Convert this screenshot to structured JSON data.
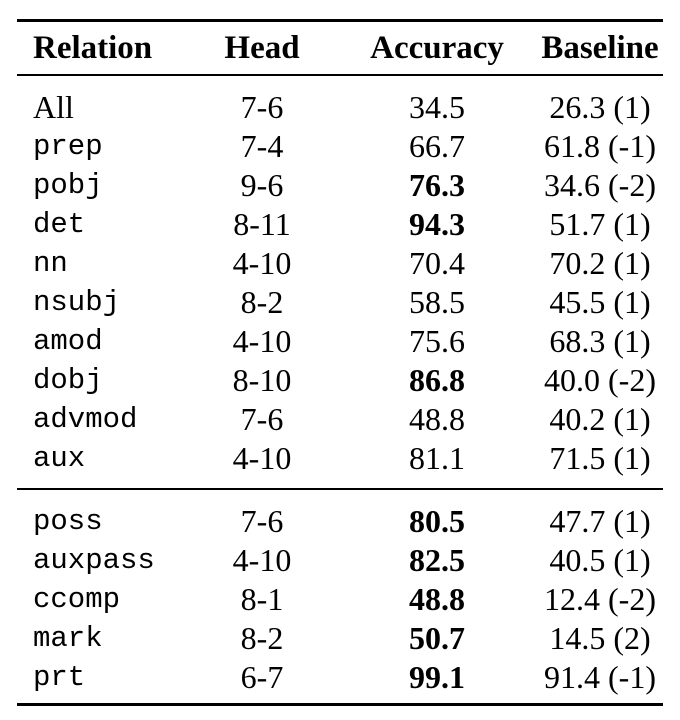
{
  "table": {
    "header": {
      "relation": "Relation",
      "head": "Head",
      "accuracy": "Accuracy",
      "baseline": "Baseline"
    },
    "sections": [
      {
        "rows": [
          {
            "relation": "All",
            "head": "7-6",
            "accuracy": "34.5",
            "baseline": "26.3 (1)",
            "accuracy_bold": false,
            "relation_mono": false
          },
          {
            "relation": "prep",
            "head": "7-4",
            "accuracy": "66.7",
            "baseline": "61.8 (-1)",
            "accuracy_bold": false,
            "relation_mono": true
          },
          {
            "relation": "pobj",
            "head": "9-6",
            "accuracy": "76.3",
            "baseline": "34.6 (-2)",
            "accuracy_bold": true,
            "relation_mono": true
          },
          {
            "relation": "det",
            "head": "8-11",
            "accuracy": "94.3",
            "baseline": "51.7 (1)",
            "accuracy_bold": true,
            "relation_mono": true
          },
          {
            "relation": "nn",
            "head": "4-10",
            "accuracy": "70.4",
            "baseline": "70.2 (1)",
            "accuracy_bold": false,
            "relation_mono": true
          },
          {
            "relation": "nsubj",
            "head": "8-2",
            "accuracy": "58.5",
            "baseline": "45.5 (1)",
            "accuracy_bold": false,
            "relation_mono": true
          },
          {
            "relation": "amod",
            "head": "4-10",
            "accuracy": "75.6",
            "baseline": "68.3 (1)",
            "accuracy_bold": false,
            "relation_mono": true
          },
          {
            "relation": "dobj",
            "head": "8-10",
            "accuracy": "86.8",
            "baseline": "40.0 (-2)",
            "accuracy_bold": true,
            "relation_mono": true
          },
          {
            "relation": "advmod",
            "head": "7-6",
            "accuracy": "48.8",
            "baseline": "40.2 (1)",
            "accuracy_bold": false,
            "relation_mono": true
          },
          {
            "relation": "aux",
            "head": "4-10",
            "accuracy": "81.1",
            "baseline": "71.5 (1)",
            "accuracy_bold": false,
            "relation_mono": true
          }
        ]
      },
      {
        "rows": [
          {
            "relation": "poss",
            "head": "7-6",
            "accuracy": "80.5",
            "baseline": "47.7 (1)",
            "accuracy_bold": true,
            "relation_mono": true
          },
          {
            "relation": "auxpass",
            "head": "4-10",
            "accuracy": "82.5",
            "baseline": "40.5 (1)",
            "accuracy_bold": true,
            "relation_mono": true
          },
          {
            "relation": "ccomp",
            "head": "8-1",
            "accuracy": "48.8",
            "baseline": "12.4 (-2)",
            "accuracy_bold": true,
            "relation_mono": true
          },
          {
            "relation": "mark",
            "head": "8-2",
            "accuracy": "50.7",
            "baseline": "14.5 (2)",
            "accuracy_bold": true,
            "relation_mono": true
          },
          {
            "relation": "prt",
            "head": "6-7",
            "accuracy": "99.1",
            "baseline": "91.4 (-1)",
            "accuracy_bold": true,
            "relation_mono": true
          }
        ]
      }
    ]
  }
}
